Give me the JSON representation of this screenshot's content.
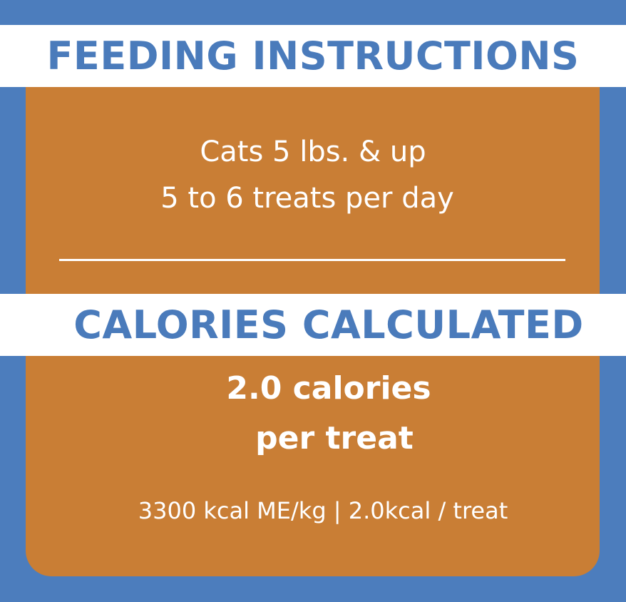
{
  "feeding": {
    "heading": "FEEDING INSTRUCTIONS",
    "weight_line": "Cats 5 lbs. & up",
    "amount_line": "5 to 6 treats per day"
  },
  "calories": {
    "heading": "CALORIES CALCULATED",
    "value_line": "2.0 calories",
    "unit_line": "per treat",
    "detail_line": "3300 kcal ME/kg | 2.0kcal / treat"
  },
  "colors": {
    "background_blue": "#4c7dbd",
    "card_orange": "#c97e35",
    "heading_blue": "#4a7bbb",
    "band_white": "#ffffff"
  }
}
